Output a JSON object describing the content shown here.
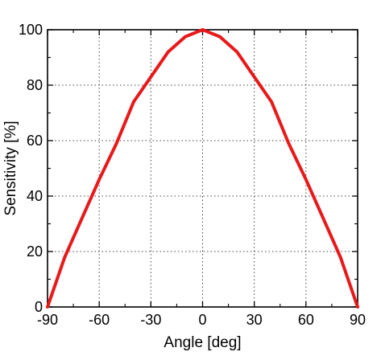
{
  "chart_data": {
    "type": "line",
    "title": "",
    "xlabel": "Angle [deg]",
    "ylabel": "Sensitivity [%]",
    "xlim": [
      -90,
      90
    ],
    "ylim": [
      0,
      100
    ],
    "xticks": [
      -90,
      -60,
      -30,
      0,
      30,
      60,
      90
    ],
    "yticks": [
      0,
      20,
      40,
      60,
      80,
      100
    ],
    "grid": true,
    "grid_style": "dotted",
    "line_color": "#e8191a",
    "series": [
      {
        "x": [
          -90,
          -80,
          -70,
          -60,
          -50,
          -40,
          -30,
          -20,
          -10,
          0,
          10,
          20,
          30,
          40,
          50,
          60,
          70,
          80,
          90
        ],
        "y": [
          0,
          18,
          32,
          46,
          59,
          74,
          83,
          92,
          97.5,
          100,
          97.5,
          92,
          83,
          74,
          59,
          46,
          32,
          18,
          0
        ]
      }
    ]
  }
}
